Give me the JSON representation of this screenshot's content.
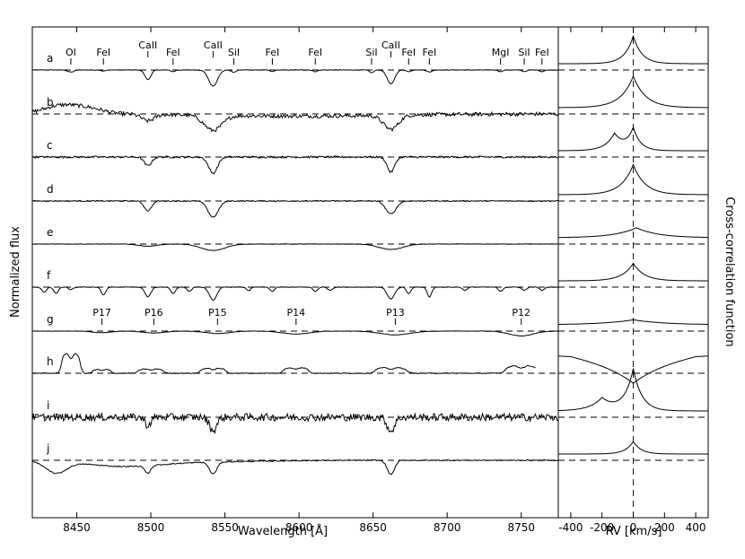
{
  "chart_data": [
    {
      "type": "line",
      "panel": "spectra",
      "xlabel": "Wavelength [Å]",
      "ylabel": "Normalized flux",
      "xlim": [
        8420,
        8775
      ],
      "xticks": [
        8450,
        8500,
        8550,
        8600,
        8650,
        8700,
        8750
      ],
      "rows": [
        "a",
        "b",
        "c",
        "d",
        "e",
        "f",
        "g",
        "h",
        "i",
        "j"
      ],
      "line_ids": [
        {
          "label": "OI",
          "wavelength": 8446
        },
        {
          "label": "FeI",
          "wavelength": 8468
        },
        {
          "label": "CaII",
          "wavelength": 8498
        },
        {
          "label": "FeI",
          "wavelength": 8515
        },
        {
          "label": "CaII",
          "wavelength": 8542
        },
        {
          "label": "SiI",
          "wavelength": 8556
        },
        {
          "label": "FeI",
          "wavelength": 8582
        },
        {
          "label": "FeI",
          "wavelength": 8611
        },
        {
          "label": "SiI",
          "wavelength": 8649
        },
        {
          "label": "CaII",
          "wavelength": 8662
        },
        {
          "label": "FeI",
          "wavelength": 8674
        },
        {
          "label": "FeI",
          "wavelength": 8688
        },
        {
          "label": "MgI",
          "wavelength": 8736
        },
        {
          "label": "SiI",
          "wavelength": 8752
        },
        {
          "label": "FeI",
          "wavelength": 8764
        }
      ],
      "paschen_ids": [
        {
          "label": "P17",
          "wavelength": 8467
        },
        {
          "label": "P16",
          "wavelength": 8502
        },
        {
          "label": "P15",
          "wavelength": 8545
        },
        {
          "label": "P14",
          "wavelength": 8598
        },
        {
          "label": "P13",
          "wavelength": 8665
        },
        {
          "label": "P12",
          "wavelength": 8750
        }
      ],
      "spectra": [
        {
          "row": "a",
          "noise": 0.05,
          "features": [
            [
              8446,
              -0.4,
              2
            ],
            [
              8468,
              -0.2,
              1.5
            ],
            [
              8498,
              -1.8,
              2
            ],
            [
              8515,
              -0.3,
              1.5
            ],
            [
              8542,
              -3,
              3
            ],
            [
              8556,
              -0.4,
              1.5
            ],
            [
              8582,
              -0.3,
              1.5
            ],
            [
              8611,
              -0.3,
              1.5
            ],
            [
              8649,
              -0.5,
              1.5
            ],
            [
              8662,
              -2.6,
              2.5
            ],
            [
              8674,
              -0.3,
              1.5
            ],
            [
              8688,
              -0.4,
              1.5
            ],
            [
              8736,
              -0.3,
              1.5
            ],
            [
              8752,
              -0.3,
              1.5
            ],
            [
              8764,
              -0.3,
              1.5
            ]
          ]
        },
        {
          "row": "b",
          "noise": 0.35,
          "bumps": [
            [
              8440,
              1.6,
              12
            ],
            [
              8460,
              0.8,
              10
            ],
            [
              8600,
              -0.4,
              60
            ]
          ],
          "features": [
            [
              8498,
              -1.2,
              4
            ],
            [
              8542,
              -2.8,
              6
            ],
            [
              8662,
              -2.6,
              5
            ]
          ]
        },
        {
          "row": "c",
          "noise": 0.18,
          "features": [
            [
              8498,
              -1.6,
              2.5
            ],
            [
              8542,
              -3,
              3
            ],
            [
              8662,
              -2.8,
              2.5
            ]
          ]
        },
        {
          "row": "d",
          "noise": 0.1,
          "features": [
            [
              8498,
              -1.8,
              2.5
            ],
            [
              8542,
              -3,
              3.5
            ],
            [
              8662,
              -2.4,
              3.5
            ]
          ]
        },
        {
          "row": "e",
          "noise": 0.04,
          "features": [
            [
              8498,
              -0.4,
              6
            ],
            [
              8542,
              -1.2,
              8
            ],
            [
              8662,
              -1.0,
              8
            ]
          ]
        },
        {
          "row": "f",
          "noise": 0.06,
          "features": [
            [
              8428,
              -1.0,
              1.5
            ],
            [
              8436,
              -1.2,
              1.5
            ],
            [
              8446,
              -0.5,
              1.5
            ],
            [
              8468,
              -1.5,
              1.5
            ],
            [
              8498,
              -1.8,
              2
            ],
            [
              8515,
              -1.2,
              1.5
            ],
            [
              8526,
              -0.8,
              1.5
            ],
            [
              8542,
              -2.4,
              2.5
            ],
            [
              8566,
              -0.6,
              1.5
            ],
            [
              8582,
              -0.8,
              1.5
            ],
            [
              8611,
              -0.8,
              1.5
            ],
            [
              8621,
              -0.6,
              1.5
            ],
            [
              8662,
              -2.2,
              2.5
            ],
            [
              8674,
              -1.2,
              1.5
            ],
            [
              8688,
              -1.8,
              1.5
            ],
            [
              8712,
              -0.6,
              1.5
            ],
            [
              8736,
              -0.8,
              1.5
            ],
            [
              8752,
              -0.6,
              1.5
            ],
            [
              8764,
              -0.6,
              1.5
            ]
          ]
        },
        {
          "row": "g",
          "noise": 0.03,
          "features": [
            [
              8467,
              -0.3,
              6
            ],
            [
              8502,
              -0.35,
              7
            ],
            [
              8545,
              -0.45,
              8
            ],
            [
              8598,
              -0.55,
              9
            ],
            [
              8665,
              -0.7,
              10
            ],
            [
              8750,
              -0.9,
              8
            ]
          ]
        },
        {
          "row": "h",
          "noise": 0.08,
          "emission": [
            [
              8446,
              3.2,
              3
            ],
            [
              8467,
              0.6,
              3
            ],
            [
              8500,
              0.7,
              4
            ],
            [
              8542,
              0.8,
              4
            ],
            [
              8598,
              0.9,
              4
            ],
            [
              8662,
              0.9,
              5
            ],
            [
              8750,
              1.2,
              5
            ]
          ]
        },
        {
          "row": "i",
          "noise": 0.7,
          "features": [
            [
              8498,
              -1.5,
              2
            ],
            [
              8542,
              -2.5,
              2.5
            ],
            [
              8662,
              -2.6,
              2.5
            ]
          ]
        },
        {
          "row": "j",
          "noise": 0.1,
          "bumps": [
            [
              8436,
              -2.2,
              7
            ],
            [
              8480,
              -1.0,
              25
            ],
            [
              8530,
              -0.3,
              40
            ]
          ],
          "features": [
            [
              8498,
              -1.4,
              2
            ],
            [
              8542,
              -2.2,
              2.5
            ],
            [
              8662,
              -2.6,
              2.5
            ]
          ]
        }
      ]
    },
    {
      "type": "line",
      "panel": "ccf",
      "xlabel": "RV [km/s]",
      "ylabel": "Cross-correlation function",
      "xlim": [
        -480,
        480
      ],
      "xticks": [
        -400,
        -200,
        0,
        200,
        400
      ],
      "rows": [
        "a",
        "b",
        "c",
        "d",
        "e",
        "f",
        "g",
        "h",
        "i",
        "j"
      ],
      "ccf": [
        {
          "row": "a",
          "peaks": [
            [
              0,
              2.2,
              55
            ]
          ]
        },
        {
          "row": "b",
          "peaks": [
            [
              0,
              2.5,
              80
            ]
          ]
        },
        {
          "row": "c",
          "peaks": [
            [
              -120,
              1.3,
              60
            ],
            [
              0,
              1.7,
              45
            ]
          ]
        },
        {
          "row": "d",
          "peaks": [
            [
              0,
              2.4,
              75
            ]
          ]
        },
        {
          "row": "e",
          "peaks": [
            [
              20,
              0.8,
              140
            ]
          ]
        },
        {
          "row": "f",
          "peaks": [
            [
              0,
              1.4,
              70
            ]
          ]
        },
        {
          "row": "g",
          "peaks": [
            [
              0,
              0.4,
              200
            ]
          ]
        },
        {
          "row": "h",
          "peaks": [
            [
              0,
              -1.3,
              180
            ]
          ],
          "wings": 0.8
        },
        {
          "row": "i",
          "peaks": [
            [
              0,
              3.3,
              55
            ],
            [
              -200,
              1.0,
              80
            ]
          ]
        },
        {
          "row": "j",
          "peaks": [
            [
              0,
              1.0,
              50
            ]
          ]
        }
      ]
    }
  ]
}
